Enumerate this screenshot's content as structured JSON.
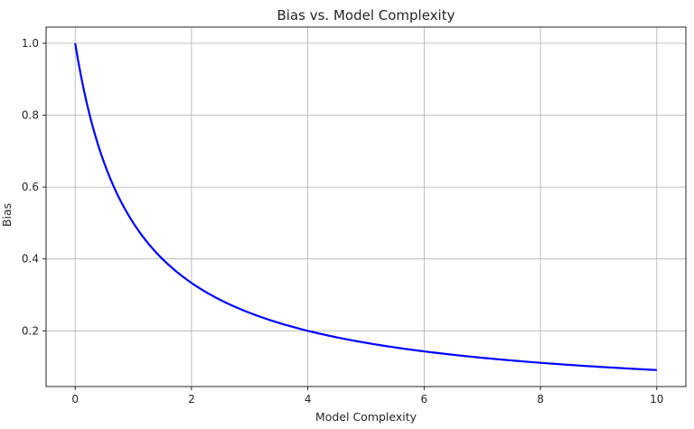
{
  "chart_data": {
    "type": "line",
    "title": "Bias vs. Model Complexity",
    "xlabel": "Model Complexity",
    "ylabel": "Bias",
    "xlim": [
      -0.5,
      10.5
    ],
    "ylim": [
      0.045,
      1.045
    ],
    "x_ticks": [
      0,
      2,
      4,
      6,
      8,
      10
    ],
    "x_tick_labels": [
      "0",
      "2",
      "4",
      "6",
      "8",
      "10"
    ],
    "y_ticks": [
      0.2,
      0.4,
      0.6,
      0.8,
      1.0
    ],
    "y_tick_labels": [
      "0.2",
      "0.4",
      "0.6",
      "0.8",
      "1.0"
    ],
    "grid": true,
    "legend": null,
    "series": [
      {
        "name": "Bias",
        "color": "#0000ff",
        "function": "1/(1+x)",
        "x": [
          0,
          0.25,
          0.5,
          0.75,
          1,
          1.5,
          2,
          2.5,
          3,
          3.5,
          4,
          4.5,
          5,
          5.5,
          6,
          6.5,
          7,
          7.5,
          8,
          8.5,
          9,
          9.5,
          10
        ],
        "values": [
          1.0,
          0.8,
          0.667,
          0.571,
          0.5,
          0.4,
          0.333,
          0.286,
          0.25,
          0.222,
          0.2,
          0.182,
          0.167,
          0.154,
          0.143,
          0.133,
          0.125,
          0.118,
          0.111,
          0.105,
          0.1,
          0.095,
          0.091
        ]
      }
    ]
  },
  "colors": {
    "line": "#0000ff",
    "grid": "#b0b0b0",
    "axis": "#262626"
  }
}
